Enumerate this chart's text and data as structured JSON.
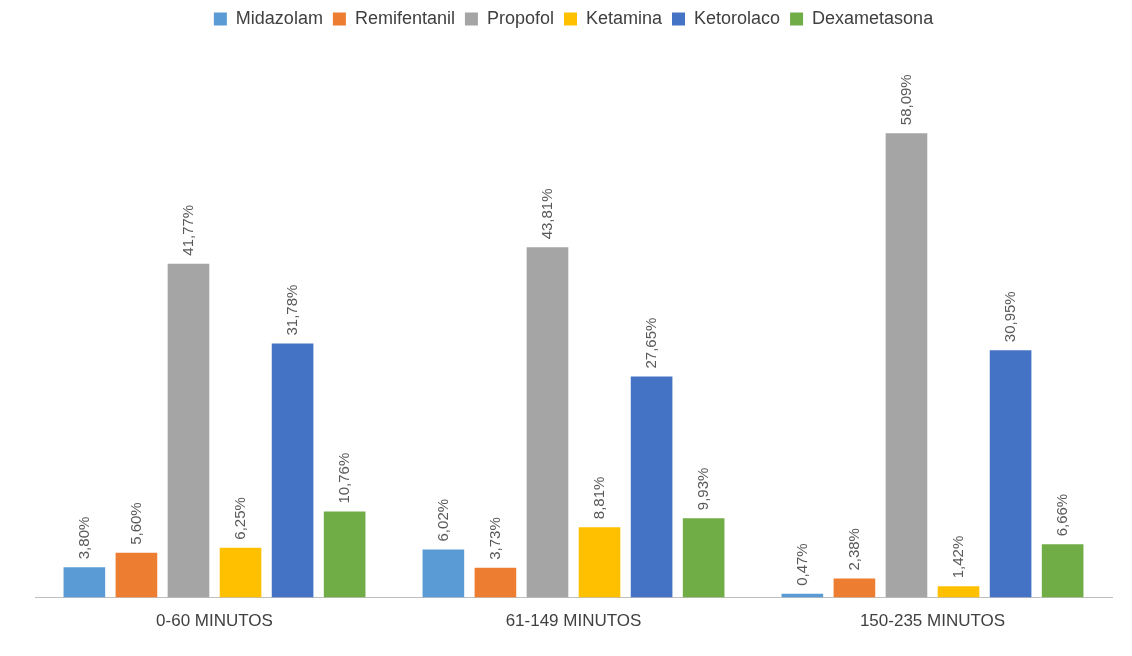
{
  "chart_data": {
    "type": "bar",
    "categories": [
      "0-60 MINUTOS",
      "61-149 MINUTOS",
      "150-235 MINUTOS"
    ],
    "series": [
      {
        "name": "Midazolam",
        "color": "#5b9bd5",
        "values": [
          3.8,
          6.02,
          0.47
        ],
        "value_labels": [
          "3,80%",
          "6,02%",
          "0,47%"
        ]
      },
      {
        "name": "Remifentanil",
        "color": "#ed7d31",
        "values": [
          5.6,
          3.73,
          2.38
        ],
        "value_labels": [
          "5,60%",
          "3,73%",
          "2,38%"
        ]
      },
      {
        "name": "Propofol",
        "color": "#a5a5a5",
        "values": [
          41.77,
          43.81,
          58.09
        ],
        "value_labels": [
          "41,77%",
          "43,81%",
          "58,09%"
        ]
      },
      {
        "name": "Ketamina",
        "color": "#ffc000",
        "values": [
          6.25,
          8.81,
          1.42
        ],
        "value_labels": [
          "6,25%",
          "8,81%",
          "1,42%"
        ]
      },
      {
        "name": "Ketorolaco",
        "color": "#4472c4",
        "values": [
          31.78,
          27.65,
          30.95
        ],
        "value_labels": [
          "31,78%",
          "27,65%",
          "30,95%"
        ]
      },
      {
        "name": "Dexametasona",
        "color": "#70ad47",
        "values": [
          10.76,
          9.93,
          6.66
        ],
        "value_labels": [
          "10,76%",
          "9,93%",
          "6,66%"
        ]
      }
    ],
    "legend": "top",
    "grid": false
  }
}
